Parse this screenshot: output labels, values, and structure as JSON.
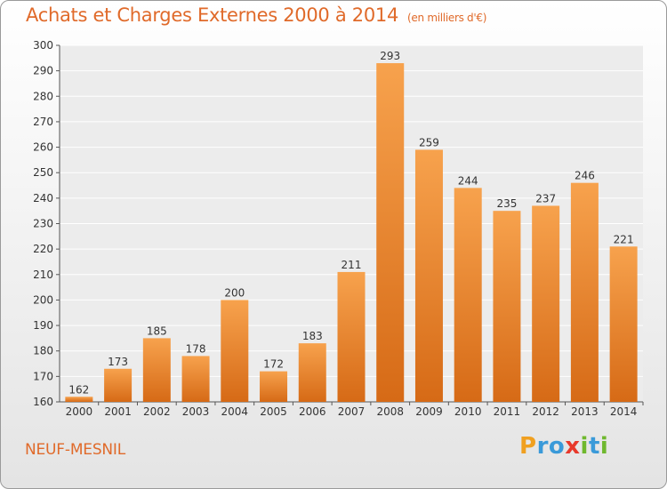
{
  "title": "Achats et Charges Externes 2000 à 2014",
  "subtitle": "(en milliers d'€)",
  "commune": "NEUF-MESNIL",
  "brand": {
    "letters": [
      "P",
      "r",
      "o",
      "x",
      "i",
      "t",
      "i"
    ],
    "colors": [
      "#f0a020",
      "#3a9ad9",
      "#3a9ad9",
      "#e8392b",
      "#6fb82e",
      "#3a9ad9",
      "#6fb82e"
    ]
  },
  "colors": {
    "accent": "#e06a2a",
    "bar_light": "#f7a24d",
    "bar_dark": "#d66a16"
  },
  "chart_data": {
    "type": "bar",
    "title": "Achats et Charges Externes 2000 à 2014",
    "categories": [
      "2000",
      "2001",
      "2002",
      "2003",
      "2004",
      "2005",
      "2006",
      "2007",
      "2008",
      "2009",
      "2010",
      "2011",
      "2012",
      "2013",
      "2014"
    ],
    "values": [
      162,
      173,
      185,
      178,
      200,
      172,
      183,
      211,
      293,
      259,
      244,
      235,
      237,
      246,
      221
    ],
    "ylim": [
      160,
      300
    ],
    "yticks": [
      160,
      170,
      180,
      190,
      200,
      210,
      220,
      230,
      240,
      250,
      260,
      270,
      280,
      290,
      300
    ],
    "grid": true,
    "legend": "none"
  }
}
